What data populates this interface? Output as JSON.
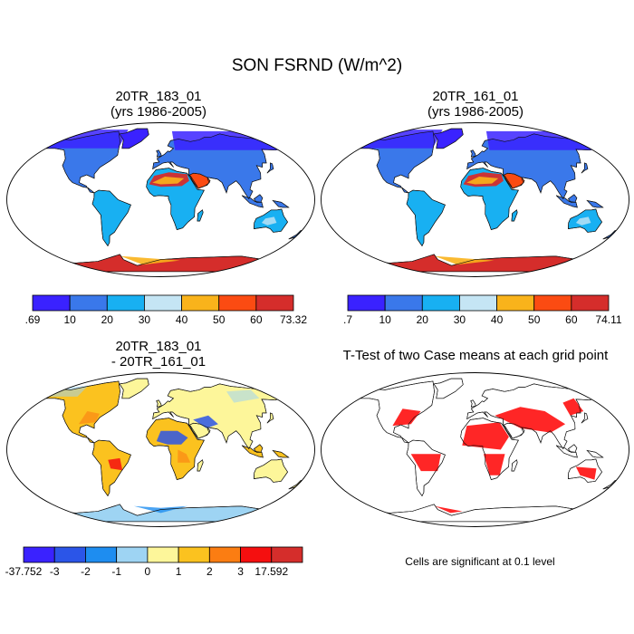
{
  "title": "SON FSRND (W/m^2)",
  "panels": [
    {
      "id": "case1",
      "title_lines": [
        "20TR_183_01",
        "(yrs 1986-2005)"
      ],
      "colorbar": {
        "colors": [
          "#3a22ff",
          "#3a78ea",
          "#18b0f2",
          "#c5e5f4",
          "#f9b31b",
          "#fb4b12",
          "#d52d2b"
        ],
        "labels": [
          ".69",
          "10",
          "20",
          "30",
          "40",
          "50",
          "60",
          "73.32"
        ]
      }
    },
    {
      "id": "case2",
      "title_lines": [
        "20TR_161_01",
        "(yrs 1986-2005)"
      ],
      "colorbar": {
        "colors": [
          "#3a22ff",
          "#3a78ea",
          "#18b0f2",
          "#c5e5f4",
          "#f9b31b",
          "#fb4b12",
          "#d52d2b"
        ],
        "labels": [
          ".7",
          "10",
          "20",
          "30",
          "40",
          "50",
          "60",
          "74.11"
        ]
      }
    },
    {
      "id": "difference",
      "title_lines": [
        "20TR_183_01",
        "- 20TR_161_01"
      ],
      "colorbar": {
        "colors": [
          "#3a22ff",
          "#2b55e8",
          "#1e8df0",
          "#9ed4f3",
          "#fdf69a",
          "#fbc21f",
          "#fb7d12",
          "#f50f0f",
          "#d52d2b"
        ],
        "labels": [
          "-37.752",
          "-3",
          "-2",
          "-1",
          "0",
          "1",
          "2",
          "3",
          "17.592"
        ]
      }
    },
    {
      "id": "ttest",
      "title_lines": [
        "T-Test of two Case means at each grid point"
      ],
      "note": "Cells are significant at 0.1 level",
      "color": "#ff0000"
    }
  ]
}
